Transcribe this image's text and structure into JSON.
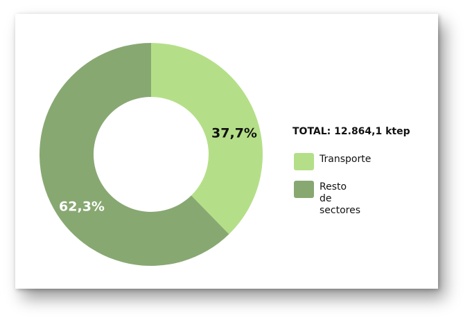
{
  "chart_data": {
    "type": "pie",
    "donut": true,
    "total_label": "TOTAL: 12.864,1 ktep",
    "slices": [
      {
        "name": "Transporte",
        "value": 37.7,
        "label": "37,7%",
        "color": "#b4df88",
        "label_color": "#111111"
      },
      {
        "name": "Resto\nde sectores",
        "value": 62.3,
        "label": "62,3%",
        "color": "#88a872",
        "label_color": "#ffffff"
      }
    ],
    "legend_position": "right"
  }
}
